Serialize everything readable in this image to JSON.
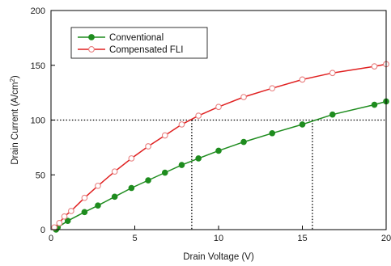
{
  "chart_data": {
    "type": "line",
    "title": "",
    "xlabel": "Drain Voltage (V)",
    "ylabel_main": "Drain Current (A/cm",
    "ylabel_sup": "2",
    "ylabel_close": ")",
    "xlim": [
      0,
      20
    ],
    "ylim": [
      0,
      200
    ],
    "xticks": [
      0,
      5,
      10,
      15,
      20
    ],
    "yticks": [
      0,
      50,
      100,
      150,
      200
    ],
    "grid": false,
    "legend_position": "top-left",
    "series": [
      {
        "name": "Conventional",
        "color": "#1e8c1e",
        "marker": "filled-circle",
        "x": [
          0.3,
          0.4,
          1.0,
          2.0,
          2.8,
          3.8,
          4.8,
          5.8,
          6.8,
          7.8,
          8.8,
          10.0,
          11.5,
          13.2,
          15.0,
          16.8,
          19.3,
          20.0
        ],
        "y": [
          0,
          2,
          8,
          16,
          22,
          30,
          38,
          45,
          52,
          59,
          65,
          72,
          80,
          88,
          96,
          105,
          114,
          117
        ]
      },
      {
        "name": "Compensated FLI",
        "color": "#e02020",
        "marker": "open-circle",
        "x": [
          0.2,
          0.5,
          0.8,
          1.2,
          2.0,
          2.8,
          3.8,
          4.8,
          5.8,
          6.8,
          7.8,
          8.8,
          10.0,
          11.5,
          13.2,
          15.0,
          16.8,
          19.3,
          20.0
        ],
        "y": [
          2,
          6,
          12,
          17,
          29,
          40,
          53,
          65,
          76,
          86,
          96,
          104,
          112,
          121,
          129,
          137,
          143,
          149,
          151
        ]
      }
    ],
    "reference_lines": {
      "horizontal_y": 100,
      "vertical_x": [
        8.4,
        15.6
      ],
      "style": "dotted"
    }
  }
}
